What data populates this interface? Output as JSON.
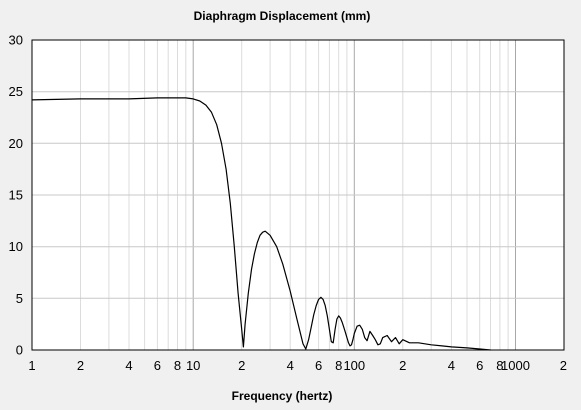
{
  "chart_data": {
    "type": "line",
    "title": "Diaphragm Displacement (mm)",
    "xlabel": "Frequency (hertz)",
    "ylabel": "",
    "x_scale": "log",
    "xlim": [
      1,
      2000
    ],
    "ylim": [
      0,
      30
    ],
    "grid": true,
    "y_ticks": [
      0,
      5,
      10,
      15,
      20,
      25,
      30
    ],
    "x_tick_labels": [
      {
        "value": 1,
        "label": "1"
      },
      {
        "value": 2,
        "label": "2"
      },
      {
        "value": 4,
        "label": "4"
      },
      {
        "value": 6,
        "label": "6"
      },
      {
        "value": 8,
        "label": "8"
      },
      {
        "value": 10,
        "label": "10"
      },
      {
        "value": 20,
        "label": "2"
      },
      {
        "value": 40,
        "label": "4"
      },
      {
        "value": 60,
        "label": "6"
      },
      {
        "value": 80,
        "label": "8"
      },
      {
        "value": 100,
        "label": "100"
      },
      {
        "value": 200,
        "label": "2"
      },
      {
        "value": 400,
        "label": "4"
      },
      {
        "value": 600,
        "label": "6"
      },
      {
        "value": 800,
        "label": "8"
      },
      {
        "value": 1000,
        "label": "1000"
      },
      {
        "value": 2000,
        "label": "2"
      }
    ],
    "series": [
      {
        "color": "#000000",
        "x": [
          1,
          2,
          4,
          6,
          8,
          9,
          10,
          11,
          12,
          13,
          14,
          15,
          16,
          17,
          18,
          19,
          20,
          20.5,
          21,
          22,
          23,
          24,
          25,
          26,
          27,
          28,
          30,
          33,
          36,
          40,
          44,
          48,
          50,
          52,
          54,
          56,
          58,
          60,
          62,
          64,
          66,
          68,
          70,
          72,
          74,
          76,
          78,
          80,
          82,
          84,
          86,
          88,
          90,
          92,
          94,
          96,
          98,
          100,
          104,
          108,
          112,
          116,
          120,
          125,
          130,
          135,
          140,
          145,
          150,
          160,
          170,
          180,
          190,
          200,
          220,
          250,
          300,
          350,
          400,
          500,
          600,
          700
        ],
        "y": [
          24.2,
          24.3,
          24.3,
          24.4,
          24.4,
          24.4,
          24.3,
          24.1,
          23.7,
          23.0,
          21.8,
          20.0,
          17.5,
          14.2,
          10.0,
          5.5,
          2.0,
          0.3,
          2.5,
          5.5,
          7.8,
          9.3,
          10.4,
          11.1,
          11.4,
          11.5,
          11.1,
          10.0,
          8.3,
          5.7,
          3.0,
          0.6,
          0.1,
          1.0,
          2.2,
          3.4,
          4.3,
          4.9,
          5.1,
          4.9,
          4.3,
          3.3,
          2.0,
          0.8,
          0.7,
          2.0,
          3.0,
          3.3,
          3.1,
          2.7,
          2.2,
          1.7,
          1.2,
          0.7,
          0.4,
          0.5,
          1.0,
          1.6,
          2.3,
          2.4,
          2.0,
          1.2,
          0.9,
          1.8,
          1.4,
          1.0,
          0.5,
          0.6,
          1.2,
          1.4,
          0.8,
          1.2,
          0.6,
          1.0,
          0.7,
          0.7,
          0.5,
          0.4,
          0.3,
          0.2,
          0.1,
          0.0
        ]
      }
    ]
  }
}
